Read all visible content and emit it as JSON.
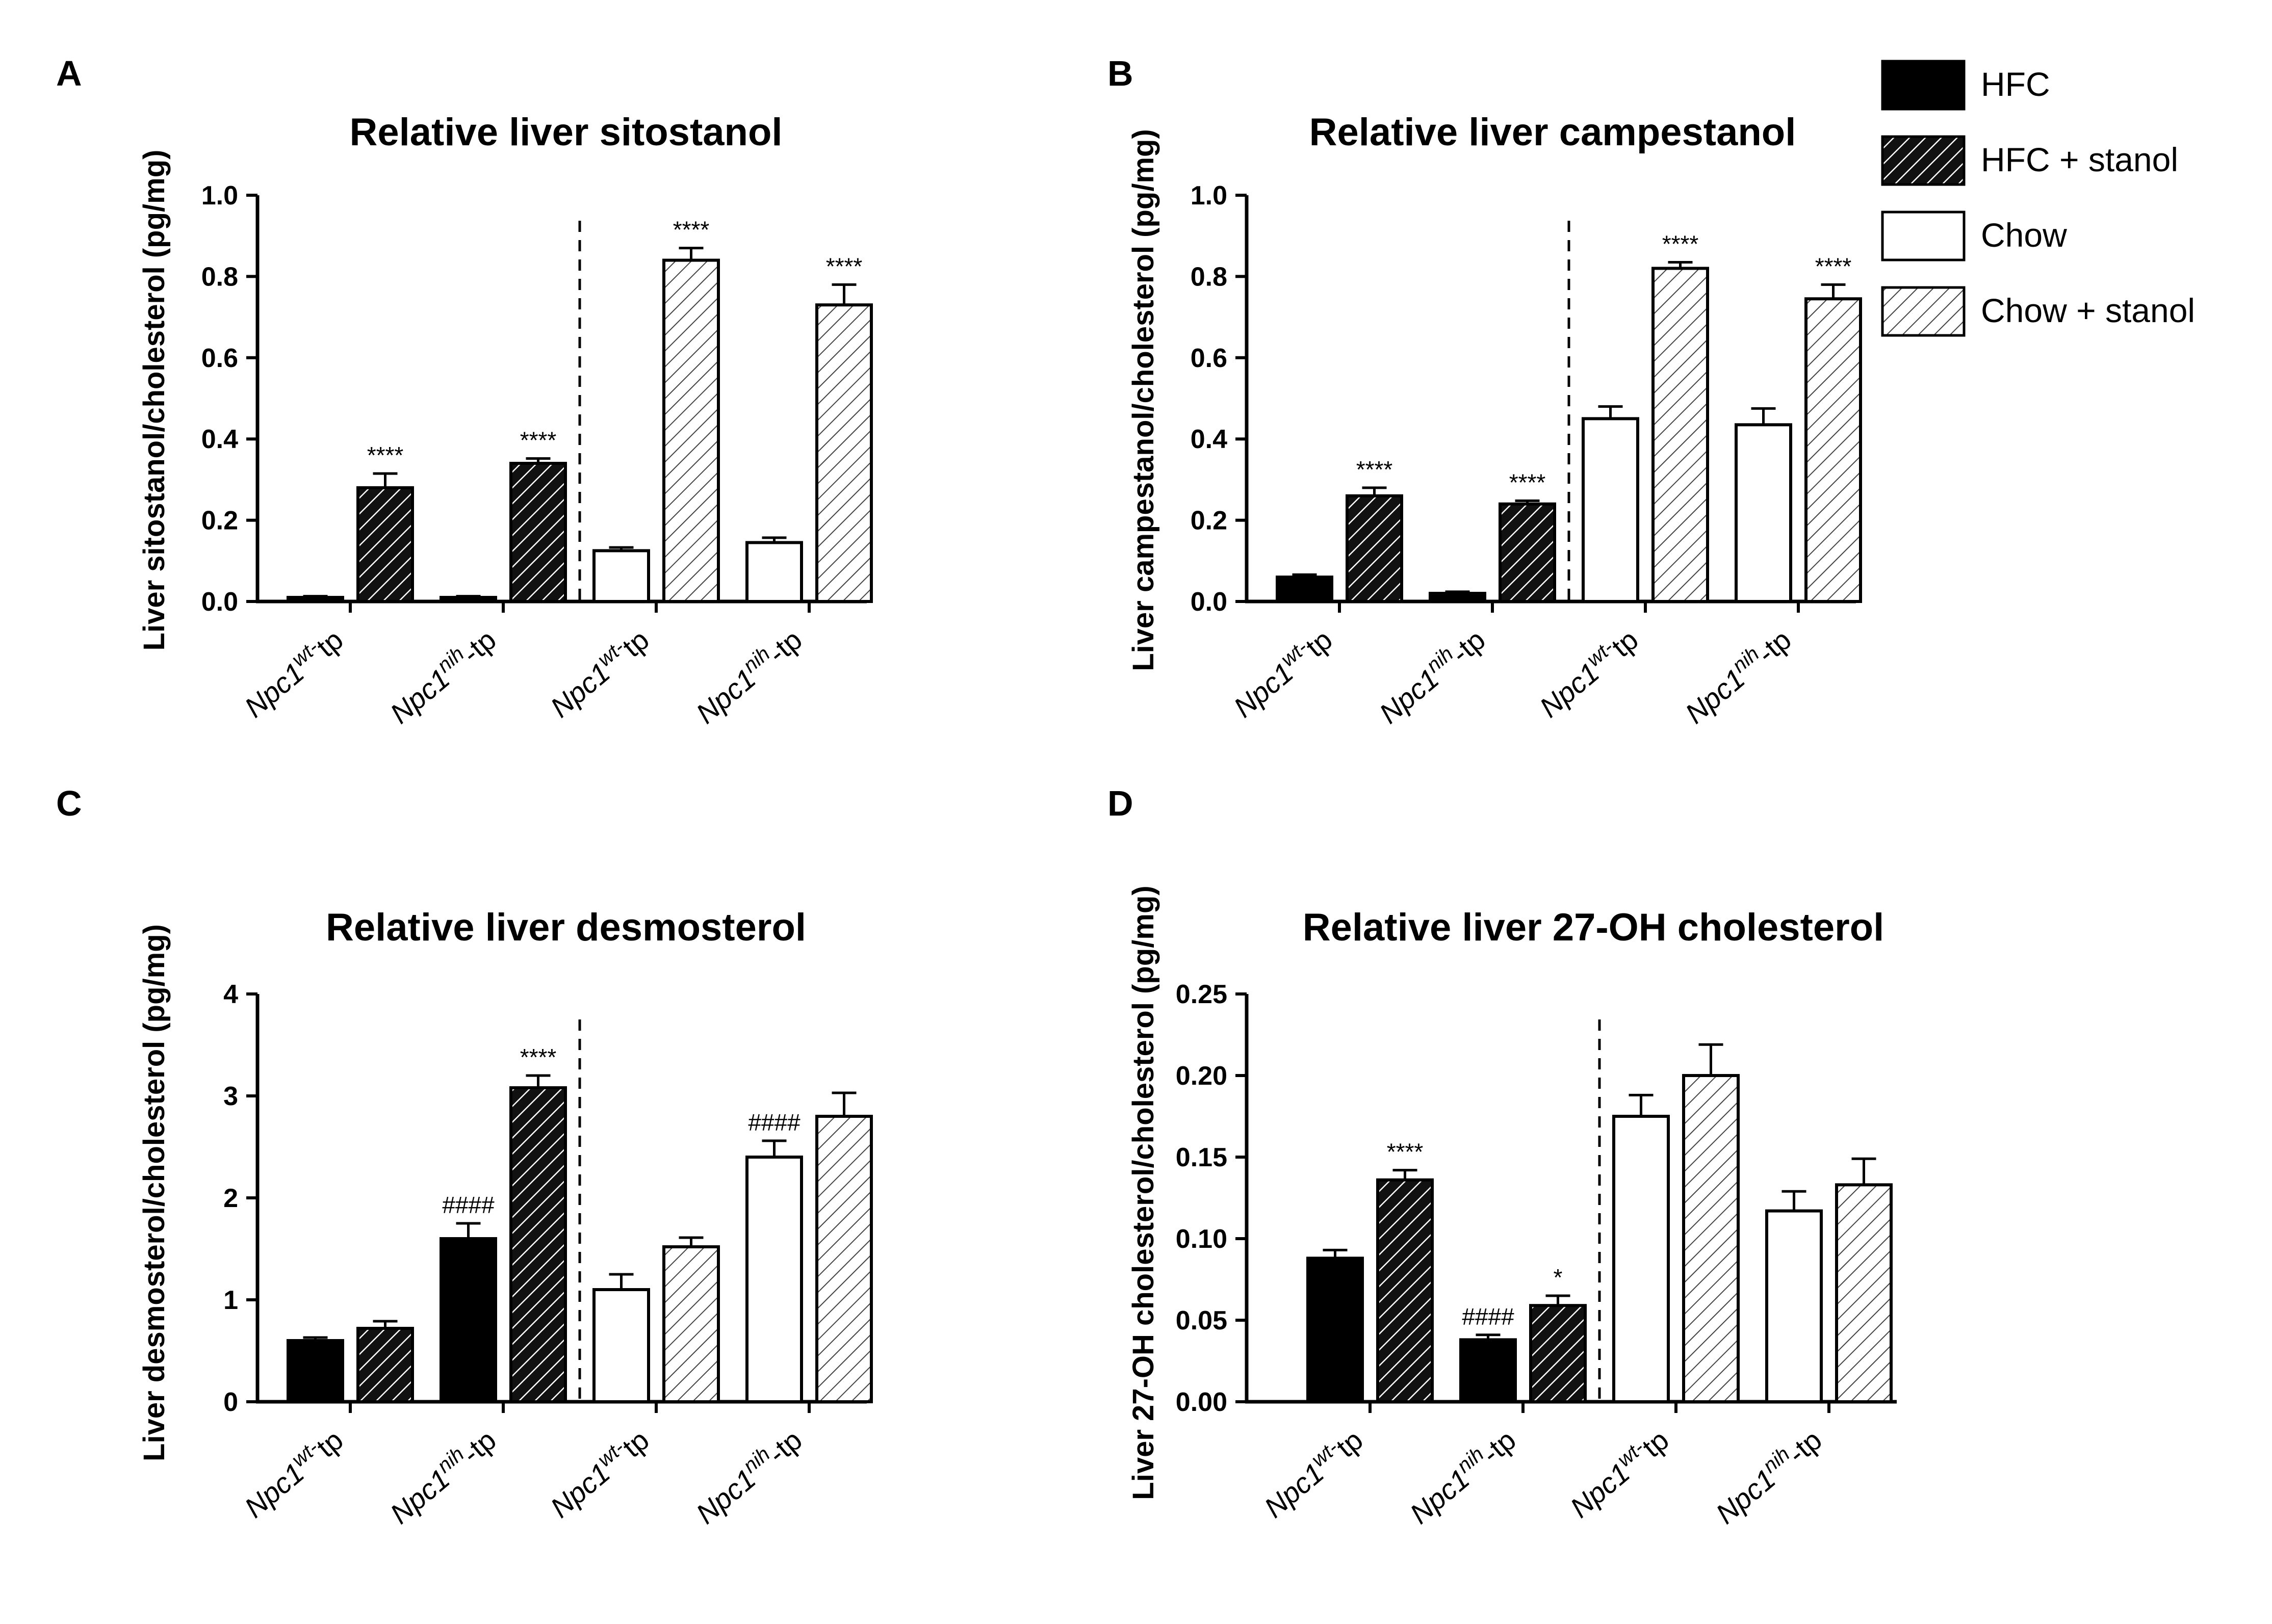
{
  "colors": {
    "dark": "#000000",
    "axis": "#000000",
    "hatch_light": "#444444",
    "hatch_dark": "#ffffff"
  },
  "legend": [
    {
      "label": "HFC",
      "style": "solid"
    },
    {
      "label": "HFC + stanol",
      "style": "hatch-dark"
    },
    {
      "label": "Chow",
      "style": "open"
    },
    {
      "label": "Chow + stanol",
      "style": "hatch-light"
    }
  ],
  "x_tick_labels": [
    {
      "base": "Npc1",
      "sup": "wt-",
      "suffix": "tp"
    },
    {
      "base": "Npc1",
      "sup": "nih",
      "suffix": "-tp"
    },
    {
      "base": "Npc1",
      "sup": "wt-",
      "suffix": "tp"
    },
    {
      "base": "Npc1",
      "sup": "nih",
      "suffix": "-tp"
    }
  ],
  "chart_data": [
    {
      "panel": "A",
      "type": "bar",
      "title": "Relative liver sitostanol",
      "ylabel": "Liver sitostanol/cholesterol (pg/mg)",
      "ylim": [
        0,
        1.0
      ],
      "yticks": [
        "0.0",
        "0.2",
        "0.4",
        "0.6",
        "0.8",
        "1.0"
      ],
      "series": [
        {
          "name": "HFC",
          "values": [
            0.01,
            0.01,
            null,
            null
          ],
          "errors": [
            0.003,
            0.003,
            null,
            null
          ]
        },
        {
          "name": "HFC + stanol",
          "values": [
            0.28,
            0.34,
            null,
            null
          ],
          "errors": [
            0.035,
            0.012,
            null,
            null
          ],
          "sig": [
            "****",
            "****",
            "",
            ""
          ]
        },
        {
          "name": "Chow",
          "values": [
            null,
            null,
            0.125,
            0.145
          ],
          "errors": [
            null,
            null,
            0.008,
            0.012
          ]
        },
        {
          "name": "Chow + stanol",
          "values": [
            null,
            null,
            0.84,
            0.73
          ],
          "errors": [
            null,
            null,
            0.03,
            0.05
          ],
          "sig": [
            "",
            "",
            "****",
            "****"
          ]
        }
      ]
    },
    {
      "panel": "B",
      "type": "bar",
      "title": "Relative liver campestanol",
      "ylabel": "Liver campestanol/cholesterol (pg/mg)",
      "ylim": [
        0,
        1.0
      ],
      "yticks": [
        "0.0",
        "0.2",
        "0.4",
        "0.6",
        "0.8",
        "1.0"
      ],
      "series": [
        {
          "name": "HFC",
          "values": [
            0.06,
            0.02,
            null,
            null
          ],
          "errors": [
            0.006,
            0.004,
            null,
            null
          ]
        },
        {
          "name": "HFC + stanol",
          "values": [
            0.26,
            0.24,
            null,
            null
          ],
          "errors": [
            0.02,
            0.008,
            null,
            null
          ],
          "sig": [
            "****",
            "****",
            "",
            ""
          ]
        },
        {
          "name": "Chow",
          "values": [
            null,
            null,
            0.45,
            0.435
          ],
          "errors": [
            null,
            null,
            0.03,
            0.04
          ]
        },
        {
          "name": "Chow + stanol",
          "values": [
            null,
            null,
            0.82,
            0.745
          ],
          "errors": [
            null,
            null,
            0.015,
            0.035
          ],
          "sig": [
            "",
            "",
            "****",
            "****"
          ]
        }
      ]
    },
    {
      "panel": "C",
      "type": "bar",
      "title": "Relative liver desmosterol",
      "ylabel": "Liver desmosterol/cholesterol (pg/mg)",
      "ylim": [
        0,
        4
      ],
      "yticks": [
        "0",
        "1",
        "2",
        "3",
        "4"
      ],
      "series": [
        {
          "name": "HFC",
          "values": [
            0.6,
            1.6,
            null,
            null
          ],
          "errors": [
            0.03,
            0.15,
            null,
            null
          ],
          "sig": [
            "",
            "####",
            "",
            ""
          ]
        },
        {
          "name": "HFC + stanol",
          "values": [
            0.72,
            3.08,
            null,
            null
          ],
          "errors": [
            0.07,
            0.12,
            null,
            null
          ],
          "sig": [
            "",
            "****",
            "",
            ""
          ]
        },
        {
          "name": "Chow",
          "values": [
            null,
            null,
            1.1,
            2.4
          ],
          "errors": [
            null,
            null,
            0.15,
            0.16
          ],
          "sig": [
            "",
            "",
            "",
            "####"
          ]
        },
        {
          "name": "Chow + stanol",
          "values": [
            null,
            null,
            1.52,
            2.8
          ],
          "errors": [
            null,
            null,
            0.09,
            0.23
          ]
        }
      ]
    },
    {
      "panel": "D",
      "type": "bar",
      "title": "Relative liver 27-OH cholesterol",
      "ylabel": "Liver 27-OH cholesterol/cholesterol (pg/mg)",
      "ylim": [
        0,
        0.25
      ],
      "yticks": [
        "0.00",
        "0.05",
        "0.10",
        "0.15",
        "0.20",
        "0.25"
      ],
      "series": [
        {
          "name": "HFC",
          "values": [
            0.088,
            0.038,
            null,
            null
          ],
          "errors": [
            0.005,
            0.003,
            null,
            null
          ],
          "sig": [
            "",
            "####",
            "",
            ""
          ]
        },
        {
          "name": "HFC + stanol",
          "values": [
            0.136,
            0.059,
            null,
            null
          ],
          "errors": [
            0.006,
            0.006,
            null,
            null
          ],
          "sig": [
            "****",
            "*",
            "",
            ""
          ]
        },
        {
          "name": "Chow",
          "values": [
            null,
            null,
            0.175,
            0.117
          ],
          "errors": [
            null,
            null,
            0.013,
            0.012
          ]
        },
        {
          "name": "Chow + stanol",
          "values": [
            null,
            null,
            0.2,
            0.133
          ],
          "errors": [
            null,
            null,
            0.019,
            0.016
          ]
        }
      ]
    }
  ]
}
